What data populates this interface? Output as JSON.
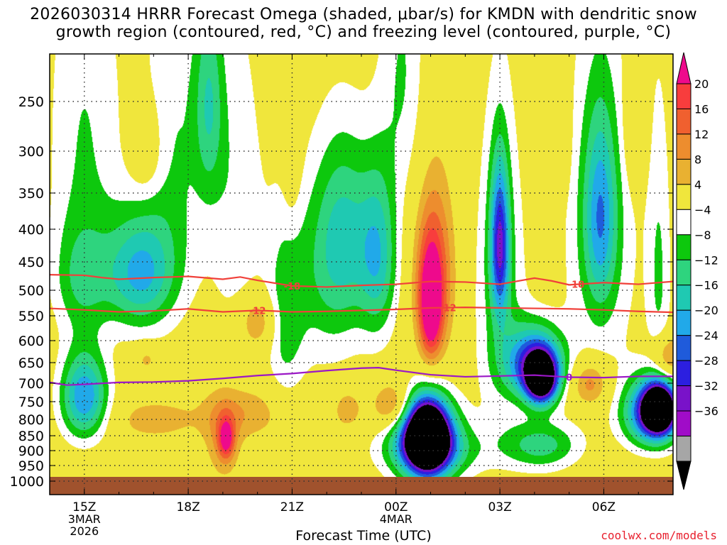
{
  "title": {
    "line1": "2026030314 HRRR Forecast Omega (shaded, μbar/s) for KMDN with dendritic snow",
    "line2": "growth region (contoured, red, °C) and freezing level (contoured, purple, °C)"
  },
  "credit": "coolwx.com/models",
  "chart_data": {
    "type": "heatmap",
    "xlabel": "Forecast Time (UTC)",
    "ylabel": "",
    "x_ticks": [
      {
        "hour": 1,
        "lines": [
          "15Z",
          "3MAR",
          "2026"
        ]
      },
      {
        "hour": 4,
        "lines": [
          "18Z"
        ]
      },
      {
        "hour": 7,
        "lines": [
          "21Z"
        ]
      },
      {
        "hour": 10,
        "lines": [
          "00Z",
          "4MAR"
        ]
      },
      {
        "hour": 13,
        "lines": [
          "03Z"
        ]
      },
      {
        "hour": 16,
        "lines": [
          "06Z"
        ]
      }
    ],
    "xlim_hours": [
      0,
      18
    ],
    "y_ticks": [
      250,
      300,
      350,
      400,
      450,
      500,
      550,
      600,
      650,
      700,
      750,
      800,
      850,
      900,
      950,
      1000
    ],
    "ylim_hPa": [
      200,
      1000
    ],
    "y_scale": "log",
    "grid": true,
    "surface_below_hPa": 985,
    "colorbar": {
      "position": "right",
      "tick_labels": [
        "20",
        "16",
        "12",
        "8",
        "4",
        "−4",
        "−8",
        "−12",
        "−16",
        "−20",
        "−24",
        "−28",
        "−32",
        "−36"
      ],
      "colors": [
        "#ee0a8c",
        "#f83d3d",
        "#f0602f",
        "#ed8d2e",
        "#e9b131",
        "#f0e63c",
        "#ffffff",
        "#0dc80d",
        "#2ed47e",
        "#1fc9b2",
        "#21a9e9",
        "#1f5bdb",
        "#2c1fe0",
        "#7912c9",
        "#a00cc8",
        "#a6a6a6",
        "#000000"
      ]
    },
    "contours": [
      {
        "label": "-18",
        "color": "#f0403a",
        "points": [
          [
            0,
            472
          ],
          [
            1,
            473
          ],
          [
            1.5,
            477
          ],
          [
            2,
            480
          ],
          [
            3,
            477
          ],
          [
            4,
            475
          ],
          [
            5,
            480
          ],
          [
            5.5,
            476
          ],
          [
            6,
            482
          ],
          [
            7,
            492
          ],
          [
            8,
            494
          ],
          [
            9,
            491
          ],
          [
            10,
            489
          ],
          [
            11,
            484
          ],
          [
            12,
            485
          ],
          [
            13,
            489
          ],
          [
            14,
            478
          ],
          [
            14.5,
            483
          ],
          [
            15,
            490
          ],
          [
            16,
            486
          ],
          [
            17,
            489
          ],
          [
            18,
            484
          ]
        ]
      },
      {
        "label": "-12",
        "color": "#f0403a",
        "points": [
          [
            0,
            535
          ],
          [
            1,
            538
          ],
          [
            2,
            542
          ],
          [
            3,
            540
          ],
          [
            4,
            536
          ],
          [
            5,
            542
          ],
          [
            6,
            539
          ],
          [
            7,
            542
          ],
          [
            8,
            541
          ],
          [
            9,
            539
          ],
          [
            10,
            537
          ],
          [
            11,
            534
          ],
          [
            12,
            533
          ],
          [
            13,
            534
          ],
          [
            14,
            535
          ],
          [
            15,
            536
          ],
          [
            16,
            538
          ],
          [
            17,
            541
          ],
          [
            18,
            543
          ]
        ]
      },
      {
        "label": "0",
        "color": "#9b18c6",
        "points": [
          [
            0,
            698
          ],
          [
            0.5,
            705
          ],
          [
            1,
            703
          ],
          [
            2,
            698
          ],
          [
            3,
            697
          ],
          [
            4,
            694
          ],
          [
            5,
            688
          ],
          [
            6,
            681
          ],
          [
            7,
            676
          ],
          [
            8,
            669
          ],
          [
            9,
            663
          ],
          [
            9.5,
            662
          ],
          [
            10,
            668
          ],
          [
            11,
            679
          ],
          [
            12,
            684
          ],
          [
            13,
            682
          ],
          [
            14,
            680
          ],
          [
            15,
            685
          ],
          [
            16,
            686
          ],
          [
            17,
            683
          ],
          [
            18,
            683
          ]
        ]
      }
    ],
    "omega_fields": [
      {
        "center": [
          1.0,
          280
        ],
        "radius": [
          1.2,
          230
        ],
        "peak": -8
      },
      {
        "center": [
          0.9,
          480
        ],
        "radius": [
          0.9,
          110
        ],
        "peak": -10
      },
      {
        "center": [
          2.6,
          470
        ],
        "radius": [
          1.1,
          110
        ],
        "peak": -20
      },
      {
        "center": [
          2.8,
          300
        ],
        "radius": [
          0.55,
          60
        ],
        "peak": 6
      },
      {
        "center": [
          4.6,
          250
        ],
        "radius": [
          0.45,
          100
        ],
        "peak": -12
      },
      {
        "center": [
          3.6,
          300
        ],
        "radius": [
          1.1,
          230
        ],
        "peak": -8
      },
      {
        "center": [
          1.0,
          735
        ],
        "radius": [
          0.75,
          130
        ],
        "peak": -24
      },
      {
        "center": [
          2.8,
          640
        ],
        "radius": [
          0.35,
          35
        ],
        "peak": 6
      },
      {
        "center": [
          5.4,
          360
        ],
        "radius": [
          0.9,
          250
        ],
        "peak": -7
      },
      {
        "center": [
          6.0,
          560
        ],
        "radius": [
          0.6,
          60
        ],
        "peak": 10
      },
      {
        "center": [
          5.7,
          780
        ],
        "radius": [
          1.4,
          85
        ],
        "peak": 7
      },
      {
        "center": [
          5.0,
          860
        ],
        "radius": [
          0.55,
          140
        ],
        "peak": 8
      },
      {
        "center": [
          5.1,
          860
        ],
        "radius": [
          0.25,
          70
        ],
        "peak": 17
      },
      {
        "center": [
          3.0,
          800
        ],
        "radius": [
          1.4,
          70
        ],
        "peak": 6
      },
      {
        "center": [
          7.0,
          290
        ],
        "radius": [
          0.3,
          110
        ],
        "peak": 5
      },
      {
        "center": [
          6.8,
          560
        ],
        "radius": [
          0.6,
          220
        ],
        "peak": -8
      },
      {
        "center": [
          8.0,
          480
        ],
        "radius": [
          1.4,
          200
        ],
        "peak": -9
      },
      {
        "center": [
          8.5,
          400
        ],
        "radius": [
          0.9,
          150
        ],
        "peak": -12
      },
      {
        "center": [
          9.5,
          440
        ],
        "radius": [
          0.6,
          150
        ],
        "peak": -16
      },
      {
        "center": [
          8.6,
          770
        ],
        "radius": [
          0.5,
          70
        ],
        "peak": 7
      },
      {
        "center": [
          9.9,
          760
        ],
        "radius": [
          0.6,
          70
        ],
        "peak": 12
      },
      {
        "center": [
          10.2,
          220
        ],
        "radius": [
          0.7,
          140
        ],
        "peak": -8
      },
      {
        "center": [
          11.1,
          470
        ],
        "radius": [
          0.6,
          160
        ],
        "peak": 16
      },
      {
        "center": [
          11.0,
          530
        ],
        "radius": [
          0.35,
          110
        ],
        "peak": 22
      },
      {
        "center": [
          10.9,
          860
        ],
        "radius": [
          0.95,
          140
        ],
        "peak": -34
      },
      {
        "center": [
          10.9,
          850
        ],
        "radius": [
          0.6,
          110
        ],
        "peak": -42
      },
      {
        "center": [
          11.0,
          900
        ],
        "radius": [
          1.8,
          100
        ],
        "peak": -10
      },
      {
        "center": [
          13.0,
          500
        ],
        "radius": [
          0.85,
          330
        ],
        "peak": -9
      },
      {
        "center": [
          13.0,
          420
        ],
        "radius": [
          0.3,
          130
        ],
        "peak": -26
      },
      {
        "center": [
          14.0,
          650
        ],
        "radius": [
          0.9,
          90
        ],
        "peak": -28
      },
      {
        "center": [
          14.2,
          690
        ],
        "radius": [
          0.5,
          70
        ],
        "peak": -40
      },
      {
        "center": [
          14.2,
          880
        ],
        "radius": [
          1.2,
          90
        ],
        "peak": -14
      },
      {
        "center": [
          14.8,
          285
        ],
        "radius": [
          0.25,
          60
        ],
        "peak": 5
      },
      {
        "center": [
          15.9,
          400
        ],
        "radius": [
          1.2,
          310
        ],
        "peak": -9
      },
      {
        "center": [
          15.9,
          380
        ],
        "radius": [
          0.5,
          140
        ],
        "peak": -16
      },
      {
        "center": [
          15.6,
          700
        ],
        "radius": [
          0.6,
          65
        ],
        "peak": 12
      },
      {
        "center": [
          16.9,
          270
        ],
        "radius": [
          0.35,
          70
        ],
        "peak": 7
      },
      {
        "center": [
          17.4,
          780
        ],
        "radius": [
          0.9,
          110
        ],
        "peak": -30
      },
      {
        "center": [
          17.6,
          770
        ],
        "radius": [
          0.5,
          70
        ],
        "peak": -42
      },
      {
        "center": [
          17.8,
          640
        ],
        "radius": [
          0.5,
          60
        ],
        "peak": 14
      },
      {
        "center": [
          17.6,
          480
        ],
        "radius": [
          0.4,
          300
        ],
        "peak": -8
      },
      {
        "center": [
          17.4,
          960
        ],
        "radius": [
          0.8,
          25
        ],
        "peak": 5
      }
    ]
  }
}
